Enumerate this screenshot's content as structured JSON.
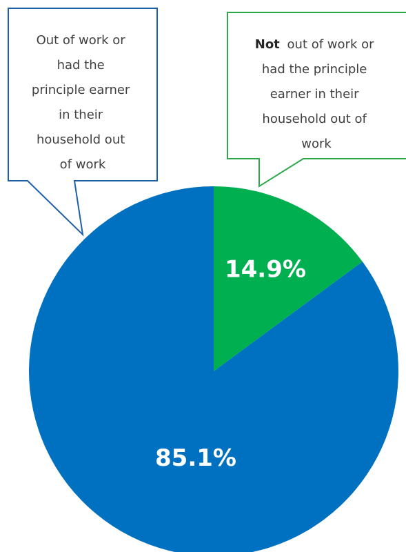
{
  "chart_data": {
    "type": "pie",
    "slices": [
      {
        "label": "Not out of work or had the principle earner in their household out of work",
        "value": 14.9,
        "display": "14.9%",
        "color": "#00b050"
      },
      {
        "label": "Out of work or had the principle earner in their household out of work",
        "value": 85.1,
        "display": "85.1%",
        "color": "#0070c0"
      }
    ],
    "start": "12 o'clock",
    "direction": "clockwise"
  },
  "callouts": {
    "left": {
      "lines": [
        "Out of work or",
        "had the",
        "principle earner",
        "in their",
        "household out",
        "of work"
      ],
      "border_color": "#1f5fa8"
    },
    "right": {
      "bold": "Not",
      "lines": [
        "out of work or",
        "had the principle",
        "earner in their",
        "household out of",
        "work"
      ],
      "border_color": "#2aa84a"
    }
  }
}
